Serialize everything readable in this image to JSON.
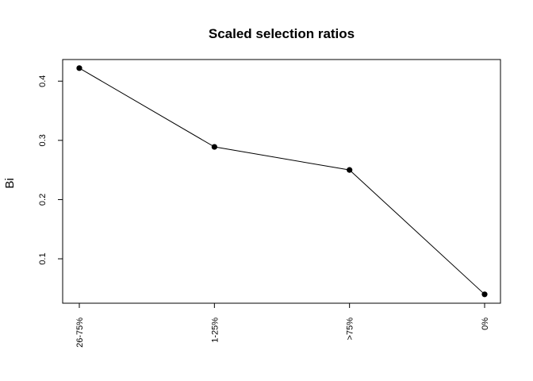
{
  "chart_data": {
    "type": "line",
    "title": "Scaled selection ratios",
    "xlabel": "",
    "ylabel": "Bi",
    "categories": [
      "26-75%",
      "1-25%",
      ">75%",
      "0%"
    ],
    "values": [
      0.422,
      0.289,
      0.25,
      0.04
    ],
    "yticks": [
      0.1,
      0.2,
      0.3,
      0.4
    ],
    "ylim": [
      0.025,
      0.4365
    ],
    "grid": false,
    "legend": "none",
    "markers": "filled-circle",
    "colors": {
      "line": "#000000",
      "points": "#000000"
    }
  }
}
